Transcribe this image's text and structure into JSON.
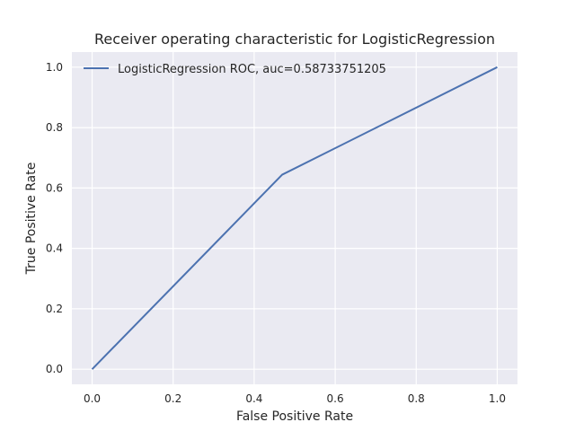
{
  "chart_data": {
    "type": "line",
    "title": "Receiver operating characteristic for LogisticRegression",
    "xlabel": "False Positive Rate",
    "ylabel": "True Positive Rate",
    "xlim": [
      -0.05,
      1.05
    ],
    "ylim": [
      -0.05,
      1.05
    ],
    "xticks": [
      "0.0",
      "0.2",
      "0.4",
      "0.6",
      "0.8",
      "1.0"
    ],
    "yticks": [
      "0.0",
      "0.2",
      "0.4",
      "0.6",
      "0.8",
      "1.0"
    ],
    "grid": true,
    "legend_position": "top-left",
    "series": [
      {
        "name": "LogisticRegression ROC, auc=0.58733751205",
        "color": "#4c72b0",
        "x": [
          0.0,
          0.469,
          1.0
        ],
        "y": [
          0.0,
          0.644,
          1.0
        ]
      }
    ]
  },
  "colors": {
    "plot_background": "#eaeaf2",
    "grid": "#ffffff",
    "text": "#262626"
  }
}
